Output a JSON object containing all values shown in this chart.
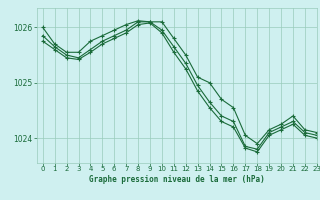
{
  "title": "Graphe pression niveau de la mer (hPa)",
  "background_color": "#cff0f0",
  "plot_bg_color": "#cff0f0",
  "grid_color": "#99ccbb",
  "line_color": "#1a6b3a",
  "xlim": [
    -0.5,
    23
  ],
  "ylim": [
    1023.55,
    1026.35
  ],
  "yticks": [
    1024,
    1025,
    1026
  ],
  "xticks": [
    0,
    1,
    2,
    3,
    4,
    5,
    6,
    7,
    8,
    9,
    10,
    11,
    12,
    13,
    14,
    15,
    16,
    17,
    18,
    19,
    20,
    21,
    22,
    23
  ],
  "series": [
    [
      1026.0,
      1025.7,
      1025.55,
      1025.55,
      1025.75,
      1025.85,
      1025.95,
      1026.05,
      1026.12,
      1026.1,
      1026.1,
      1025.8,
      1025.5,
      1025.1,
      1025.0,
      1024.7,
      1024.55,
      1024.05,
      1023.9,
      1024.15,
      1024.25,
      1024.4,
      1024.15,
      1024.1
    ],
    [
      1025.85,
      1025.65,
      1025.5,
      1025.45,
      1025.6,
      1025.75,
      1025.85,
      1025.95,
      1026.1,
      1026.1,
      1025.95,
      1025.65,
      1025.35,
      1024.95,
      1024.65,
      1024.4,
      1024.3,
      1023.85,
      1023.8,
      1024.1,
      1024.2,
      1024.3,
      1024.1,
      1024.05
    ],
    [
      1025.75,
      1025.6,
      1025.45,
      1025.42,
      1025.55,
      1025.7,
      1025.8,
      1025.9,
      1026.05,
      1026.08,
      1025.9,
      1025.55,
      1025.25,
      1024.85,
      1024.55,
      1024.3,
      1024.2,
      1023.82,
      1023.75,
      1024.05,
      1024.15,
      1024.25,
      1024.05,
      1024.0
    ]
  ]
}
